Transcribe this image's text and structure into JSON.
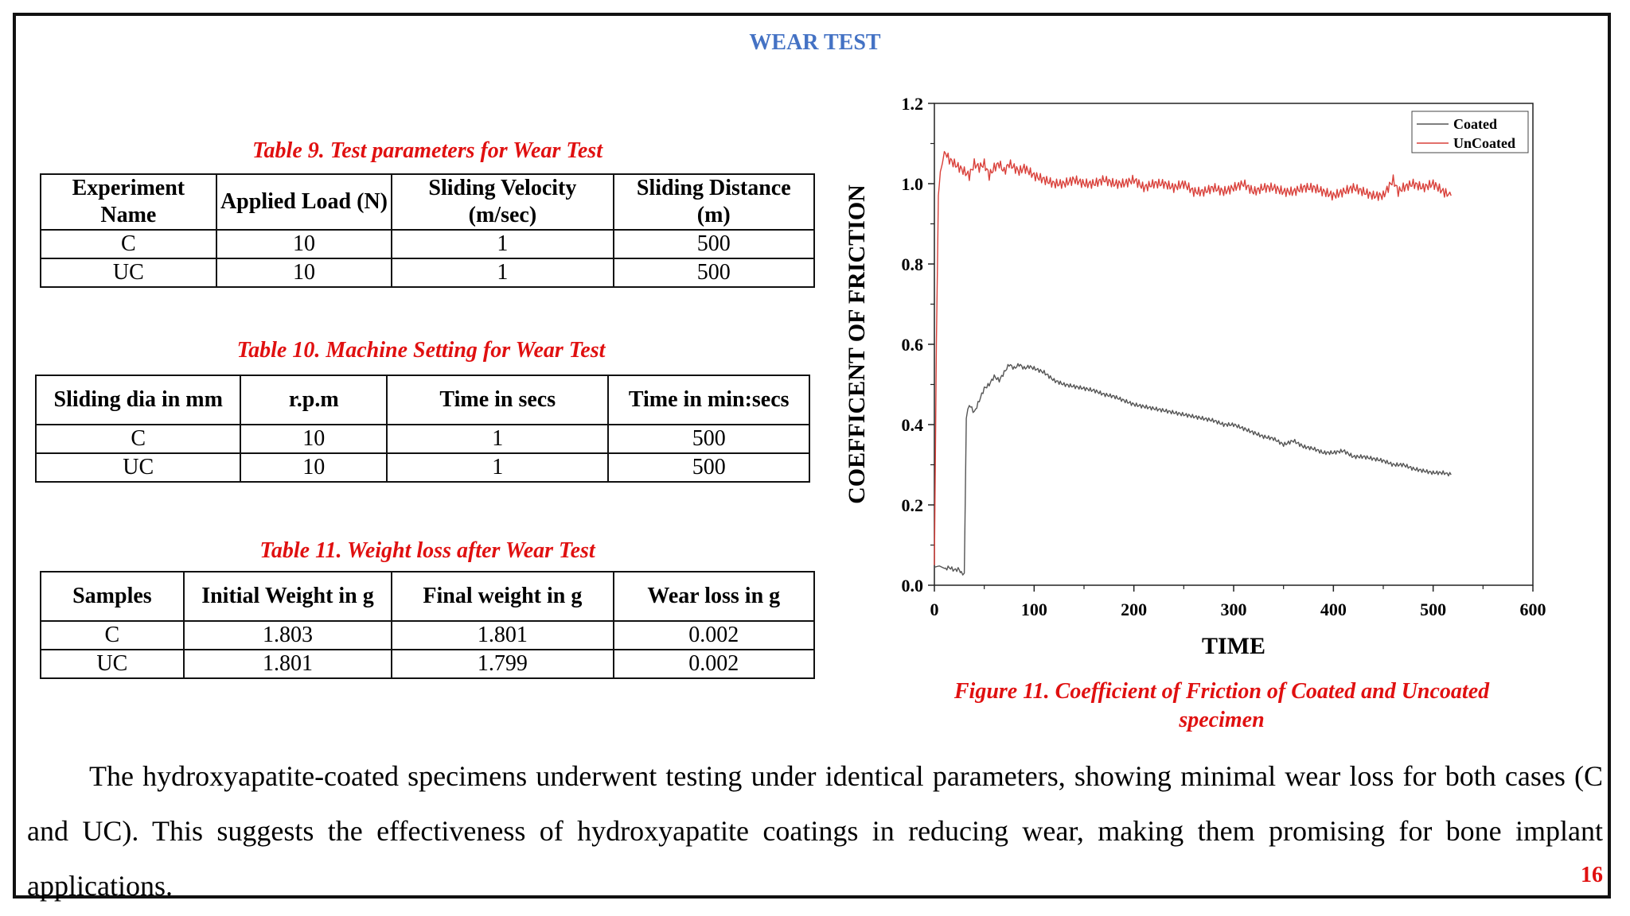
{
  "heading": "WEAR TEST",
  "table9": {
    "caption": "Table 9. Test parameters for Wear Test",
    "headers": [
      "Experiment Name",
      "Applied Load (N)",
      "Sliding Velocity (m/sec)",
      "Sliding Distance (m)"
    ],
    "rows": [
      [
        "C",
        "10",
        "1",
        "500"
      ],
      [
        "UC",
        "10",
        "1",
        "500"
      ]
    ]
  },
  "table10": {
    "caption": "Table 10. Machine Setting for Wear Test",
    "headers": [
      "Sliding dia in mm",
      "r.p.m",
      "Time in secs",
      "Time in min:secs"
    ],
    "rows": [
      [
        "C",
        "10",
        "1",
        "500"
      ],
      [
        "UC",
        "10",
        "1",
        "500"
      ]
    ]
  },
  "table11": {
    "caption": "Table 11. Weight loss after Wear Test",
    "headers": [
      "Samples",
      "Initial Weight in g",
      "Final weight in g",
      "Wear loss in g"
    ],
    "rows": [
      [
        "C",
        "1.803",
        "1.801",
        "0.002"
      ],
      [
        "UC",
        "1.801",
        "1.799",
        "0.002"
      ]
    ]
  },
  "chart_data": {
    "type": "line",
    "title": "",
    "xlabel": "TIME",
    "ylabel": "COEFFICENT OF FRICTION",
    "xlim": [
      0,
      600
    ],
    "ylim": [
      0,
      1.2
    ],
    "xticks": [
      "0",
      "100",
      "200",
      "300",
      "400",
      "500",
      "600"
    ],
    "yticks": [
      "0.0",
      "0.2",
      "0.4",
      "0.6",
      "0.8",
      "1.0",
      "1.2"
    ],
    "legend_position": "top-right",
    "series": [
      {
        "name": "Coated",
        "color": "#555555",
        "x": [
          0,
          5,
          10,
          15,
          20,
          25,
          27,
          30,
          32,
          35,
          40,
          45,
          50,
          55,
          60,
          65,
          70,
          75,
          80,
          85,
          90,
          95,
          100,
          110,
          120,
          130,
          140,
          150,
          160,
          170,
          180,
          190,
          200,
          210,
          220,
          230,
          240,
          250,
          260,
          270,
          280,
          290,
          300,
          310,
          320,
          330,
          340,
          350,
          360,
          370,
          380,
          390,
          400,
          410,
          420,
          430,
          440,
          450,
          460,
          470,
          480,
          490,
          500,
          510,
          518
        ],
        "y": [
          0.045,
          0.048,
          0.042,
          0.044,
          0.038,
          0.04,
          0.03,
          0.028,
          0.42,
          0.45,
          0.43,
          0.46,
          0.49,
          0.5,
          0.52,
          0.51,
          0.53,
          0.55,
          0.54,
          0.55,
          0.54,
          0.545,
          0.54,
          0.53,
          0.51,
          0.5,
          0.495,
          0.49,
          0.485,
          0.475,
          0.47,
          0.46,
          0.45,
          0.445,
          0.44,
          0.435,
          0.43,
          0.425,
          0.42,
          0.415,
          0.41,
          0.4,
          0.4,
          0.39,
          0.38,
          0.37,
          0.365,
          0.35,
          0.36,
          0.345,
          0.34,
          0.33,
          0.33,
          0.335,
          0.32,
          0.32,
          0.315,
          0.31,
          0.3,
          0.3,
          0.29,
          0.285,
          0.28,
          0.28,
          0.275
        ]
      },
      {
        "name": "UnCoated",
        "color": "#d9403a",
        "x": [
          0,
          2,
          4,
          6,
          8,
          10,
          15,
          20,
          25,
          30,
          35,
          40,
          45,
          50,
          55,
          60,
          65,
          70,
          75,
          80,
          85,
          90,
          95,
          100,
          110,
          120,
          130,
          140,
          150,
          160,
          170,
          180,
          190,
          200,
          210,
          220,
          230,
          240,
          250,
          260,
          270,
          280,
          290,
          300,
          310,
          320,
          330,
          340,
          350,
          360,
          370,
          380,
          390,
          400,
          410,
          420,
          430,
          440,
          450,
          455,
          460,
          465,
          470,
          480,
          490,
          500,
          510,
          518
        ],
        "y": [
          0.05,
          0.6,
          0.97,
          1.03,
          1.05,
          1.08,
          1.06,
          1.05,
          1.04,
          1.03,
          1.02,
          1.05,
          1.04,
          1.05,
          1.02,
          1.04,
          1.05,
          1.03,
          1.05,
          1.04,
          1.03,
          1.04,
          1.03,
          1.02,
          1.01,
          1.0,
          1.0,
          1.01,
          1.0,
          1.0,
          1.01,
          1.0,
          1.0,
          1.01,
          0.99,
          1.0,
          1.0,
          0.99,
          1.0,
          0.98,
          0.98,
          0.99,
          0.98,
          0.99,
          1.0,
          0.98,
          0.99,
          0.99,
          0.98,
          0.98,
          0.99,
          0.99,
          0.98,
          0.97,
          0.98,
          0.99,
          0.98,
          0.97,
          0.97,
          0.99,
          1.01,
          0.98,
          0.99,
          1.0,
          0.99,
          1.0,
          0.98,
          0.97
        ]
      }
    ]
  },
  "figure_caption": "Figure 11. Coefficient of Friction of Coated and Uncoated specimen",
  "paragraph": "The hydroxyapatite-coated specimens underwent testing under identical parameters, showing minimal wear loss for both cases (C and UC). This suggests the effectiveness of hydroxyapatite coatings in reducing wear, making them promising for bone implant applications.",
  "page_number": "16"
}
